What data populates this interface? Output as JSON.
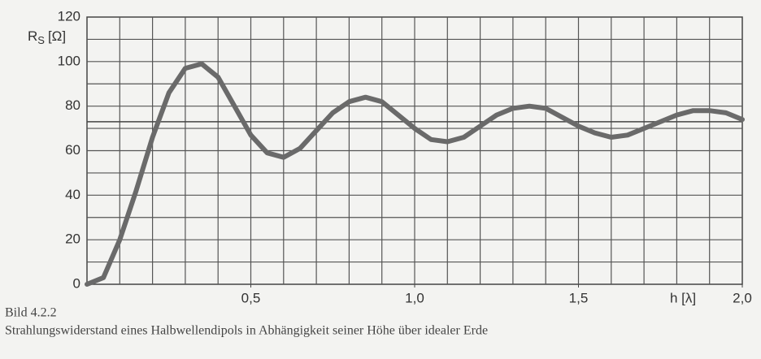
{
  "chart_data": {
    "type": "line",
    "y_label": {
      "symbol": "R",
      "subscript": "S",
      "unit": "[Ω]"
    },
    "x_label": "h [λ]",
    "figure_label": "Bild 4.2.2",
    "caption": "Strahlungswiderstand eines Halbwellendipols in Abhängigkeit seiner Höhe über idealer Erde",
    "x": [
      0,
      0.05,
      0.1,
      0.15,
      0.2,
      0.25,
      0.3,
      0.35,
      0.4,
      0.45,
      0.5,
      0.55,
      0.6,
      0.65,
      0.7,
      0.75,
      0.8,
      0.85,
      0.9,
      0.95,
      1.0,
      1.05,
      1.1,
      1.15,
      1.2,
      1.25,
      1.3,
      1.35,
      1.4,
      1.45,
      1.5,
      1.55,
      1.6,
      1.65,
      1.7,
      1.75,
      1.8,
      1.85,
      1.9,
      1.95,
      2.0
    ],
    "values": [
      0,
      3,
      20,
      42,
      66,
      86,
      97,
      99,
      93,
      80,
      67,
      59,
      57,
      61,
      69,
      77,
      82,
      84,
      82,
      76,
      70,
      65,
      64,
      66,
      71,
      76,
      79,
      80,
      79,
      75,
      71,
      68,
      66,
      67,
      70,
      73,
      76,
      78,
      78,
      77,
      74
    ],
    "color": "#6a6a6a",
    "xlim": [
      0,
      2.0
    ],
    "ylim": [
      0,
      120
    ],
    "xticks": [
      {
        "value": 0.5,
        "label": "0,5"
      },
      {
        "value": 1.0,
        "label": "1,0"
      },
      {
        "value": 1.5,
        "label": "1,5"
      },
      {
        "value": 2.0,
        "label": "2,0"
      }
    ],
    "yticks": [
      0,
      20,
      40,
      60,
      80,
      100,
      120
    ],
    "x_grid": [
      0.1,
      0.2,
      0.3,
      0.4,
      0.5,
      0.6,
      0.7,
      0.8,
      0.9,
      1.0,
      1.1,
      1.2,
      1.3,
      1.4,
      1.5,
      1.6,
      1.7,
      1.8,
      1.9
    ],
    "y_grid": [
      10,
      20,
      30,
      40,
      50,
      60,
      70,
      80,
      90,
      100,
      110
    ],
    "reference_lines": [
      73
    ],
    "grid": true
  }
}
